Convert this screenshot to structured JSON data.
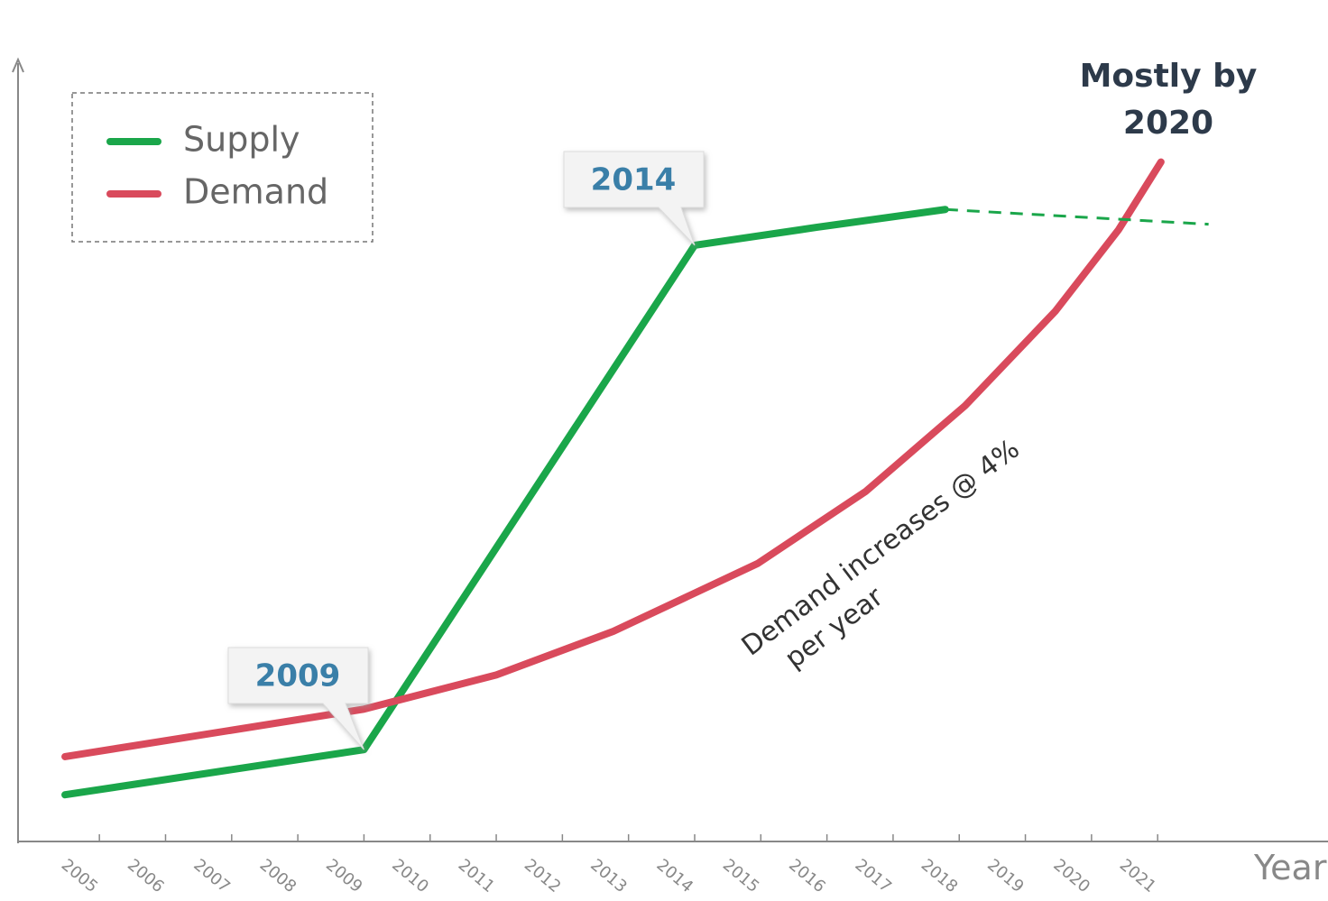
{
  "chart_data": {
    "type": "line",
    "x_label": "Year",
    "xlim": [
      2003.77,
      2023.48
    ],
    "xticks": [
      2005,
      2006,
      2007,
      2008,
      2009,
      2010,
      2011,
      2012,
      2013,
      2014,
      2015,
      2016,
      2017,
      2018,
      2019,
      2020,
      2021
    ],
    "ylim": [
      0,
      100
    ],
    "legend": "upper left",
    "series": [
      {
        "name": "Supply",
        "color": "#1aa64a",
        "style": "solid",
        "x": [
          2004.48,
          2009.0,
          2014.0,
          2015.84,
          2017.79
        ],
        "values": [
          6.0,
          11.8,
          76.6,
          78.9,
          81.2
        ]
      },
      {
        "name": "Demand",
        "color": "#d94a5c",
        "style": "solid",
        "x": [
          2004.48,
          2009.0,
          2011.0,
          2012.77,
          2014.95,
          2016.59,
          2018.09,
          2019.45,
          2020.41,
          2021.05
        ],
        "values": [
          10.9,
          17.0,
          21.4,
          27.0,
          35.7,
          45.0,
          56.0,
          68.1,
          78.6,
          87.3
        ]
      },
      {
        "color": "#1aa64a",
        "style": "dashed",
        "x": [
          2017.79,
          2021.77
        ],
        "values": [
          81.2,
          79.3
        ]
      }
    ],
    "callouts": [
      "2009",
      "2014"
    ],
    "headline": [
      "Mostly by",
      "2020"
    ],
    "note": "Demand increases @ 4% per year"
  }
}
